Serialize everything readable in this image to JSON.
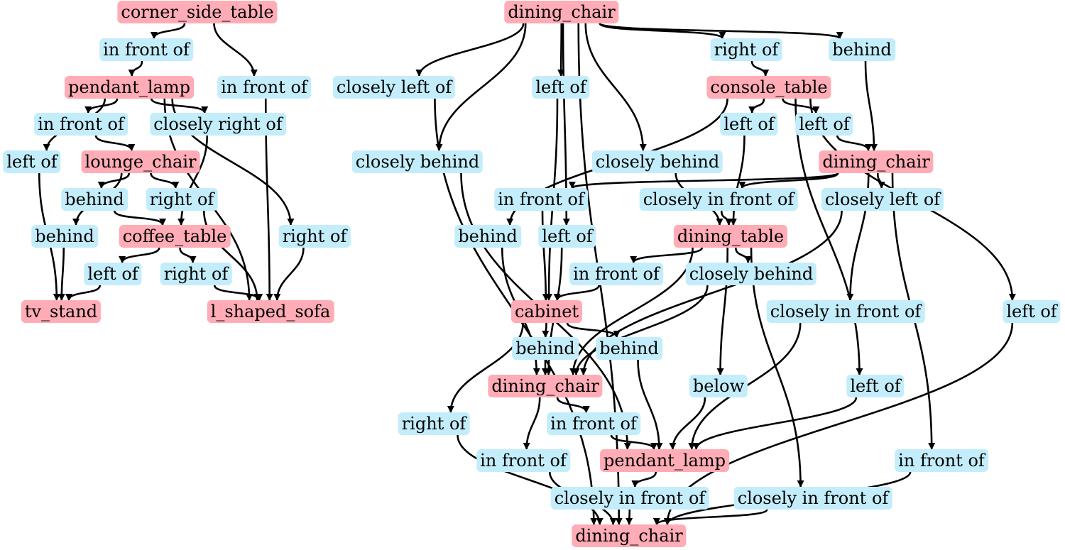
{
  "colors": {
    "object": "#ffacb6",
    "relation": "#c3edfb",
    "edge": "#000000"
  },
  "nodes": [
    {
      "id": "n1",
      "label": "corner_side_table",
      "kind": "object"
    },
    {
      "id": "n2",
      "label": "in front of",
      "kind": "relation"
    },
    {
      "id": "n3",
      "label": "pendant_lamp",
      "kind": "object"
    },
    {
      "id": "n4",
      "label": "in front of",
      "kind": "relation"
    },
    {
      "id": "n5",
      "label": "in front of",
      "kind": "relation"
    },
    {
      "id": "n6",
      "label": "closely right of",
      "kind": "relation"
    },
    {
      "id": "n7",
      "label": "left of",
      "kind": "relation"
    },
    {
      "id": "n8",
      "label": "lounge_chair",
      "kind": "object"
    },
    {
      "id": "n9",
      "label": "behind",
      "kind": "relation"
    },
    {
      "id": "n10",
      "label": "right of",
      "kind": "relation"
    },
    {
      "id": "n11",
      "label": "behind",
      "kind": "relation"
    },
    {
      "id": "n12",
      "label": "coffee_table",
      "kind": "object"
    },
    {
      "id": "n13",
      "label": "right of",
      "kind": "relation"
    },
    {
      "id": "n14",
      "label": "left of",
      "kind": "relation"
    },
    {
      "id": "n15",
      "label": "right of",
      "kind": "relation"
    },
    {
      "id": "n16",
      "label": "tv_stand",
      "kind": "object"
    },
    {
      "id": "n17",
      "label": "l_shaped_sofa",
      "kind": "object"
    },
    {
      "id": "n18",
      "label": "dining_chair",
      "kind": "object"
    },
    {
      "id": "n19",
      "label": "right of",
      "kind": "relation"
    },
    {
      "id": "n20",
      "label": "behind",
      "kind": "relation"
    },
    {
      "id": "n21",
      "label": "closely left of",
      "kind": "relation"
    },
    {
      "id": "n22",
      "label": "left of",
      "kind": "relation"
    },
    {
      "id": "n23",
      "label": "console_table",
      "kind": "object"
    },
    {
      "id": "n24",
      "label": "left of",
      "kind": "relation"
    },
    {
      "id": "n25",
      "label": "left of",
      "kind": "relation"
    },
    {
      "id": "n26",
      "label": "closely behind",
      "kind": "relation"
    },
    {
      "id": "n27",
      "label": "closely behind",
      "kind": "relation"
    },
    {
      "id": "n28",
      "label": "dining_chair",
      "kind": "object"
    },
    {
      "id": "n29",
      "label": "in front of",
      "kind": "relation"
    },
    {
      "id": "n30",
      "label": "closely in front of",
      "kind": "relation"
    },
    {
      "id": "n31",
      "label": "closely left of",
      "kind": "relation"
    },
    {
      "id": "n32",
      "label": "behind",
      "kind": "relation"
    },
    {
      "id": "n33",
      "label": "left of",
      "kind": "relation"
    },
    {
      "id": "n34",
      "label": "dining_table",
      "kind": "object"
    },
    {
      "id": "n35",
      "label": "in front of",
      "kind": "relation"
    },
    {
      "id": "n36",
      "label": "closely behind",
      "kind": "relation"
    },
    {
      "id": "n37",
      "label": "cabinet",
      "kind": "object"
    },
    {
      "id": "n38",
      "label": "closely in front of",
      "kind": "relation"
    },
    {
      "id": "n39",
      "label": "left of",
      "kind": "relation"
    },
    {
      "id": "n40",
      "label": "behind",
      "kind": "relation"
    },
    {
      "id": "n41",
      "label": "behind",
      "kind": "relation"
    },
    {
      "id": "n42",
      "label": "dining_chair",
      "kind": "object"
    },
    {
      "id": "n43",
      "label": "below",
      "kind": "relation"
    },
    {
      "id": "n44",
      "label": "left of",
      "kind": "relation"
    },
    {
      "id": "n45",
      "label": "right of",
      "kind": "relation"
    },
    {
      "id": "n46",
      "label": "in front of",
      "kind": "relation"
    },
    {
      "id": "n47",
      "label": "in front of",
      "kind": "relation"
    },
    {
      "id": "n48",
      "label": "pendant_lamp",
      "kind": "object"
    },
    {
      "id": "n49",
      "label": "in front of",
      "kind": "relation"
    },
    {
      "id": "n50",
      "label": "closely in front of",
      "kind": "relation"
    },
    {
      "id": "n51",
      "label": "closely in front of",
      "kind": "relation"
    },
    {
      "id": "n52",
      "label": "dining_chair",
      "kind": "object"
    }
  ],
  "edges": [
    [
      "n1",
      "n2"
    ],
    [
      "n1",
      "n4"
    ],
    [
      "n2",
      "n3"
    ],
    [
      "n3",
      "n5"
    ],
    [
      "n3",
      "n6"
    ],
    [
      "n3",
      "n7"
    ],
    [
      "n3",
      "n13"
    ],
    [
      "n3",
      "n17"
    ],
    [
      "n5",
      "n8"
    ],
    [
      "n6",
      "n12"
    ],
    [
      "n7",
      "n16"
    ],
    [
      "n4",
      "n17"
    ],
    [
      "n8",
      "n9"
    ],
    [
      "n8",
      "n10"
    ],
    [
      "n8",
      "n11"
    ],
    [
      "n9",
      "n12"
    ],
    [
      "n10",
      "n17"
    ],
    [
      "n11",
      "n16"
    ],
    [
      "n12",
      "n14"
    ],
    [
      "n12",
      "n15"
    ],
    [
      "n14",
      "n16"
    ],
    [
      "n15",
      "n17"
    ],
    [
      "n13",
      "n17"
    ],
    [
      "n18",
      "n19"
    ],
    [
      "n18",
      "n20"
    ],
    [
      "n18",
      "n21"
    ],
    [
      "n18",
      "n22"
    ],
    [
      "n18",
      "n26"
    ],
    [
      "n18",
      "n27"
    ],
    [
      "n18",
      "n33"
    ],
    [
      "n18",
      "n52"
    ],
    [
      "n19",
      "n23"
    ],
    [
      "n20",
      "n28"
    ],
    [
      "n21",
      "n52"
    ],
    [
      "n22",
      "n37"
    ],
    [
      "n23",
      "n24"
    ],
    [
      "n23",
      "n25"
    ],
    [
      "n23",
      "n32"
    ],
    [
      "n23",
      "n44"
    ],
    [
      "n23",
      "n39"
    ],
    [
      "n24",
      "n34"
    ],
    [
      "n25",
      "n28"
    ],
    [
      "n26",
      "n48"
    ],
    [
      "n27",
      "n34"
    ],
    [
      "n28",
      "n29"
    ],
    [
      "n28",
      "n30"
    ],
    [
      "n28",
      "n31"
    ],
    [
      "n28",
      "n38"
    ],
    [
      "n28",
      "n47"
    ],
    [
      "n29",
      "n37"
    ],
    [
      "n30",
      "n34"
    ],
    [
      "n31",
      "n42"
    ],
    [
      "n32",
      "n42"
    ],
    [
      "n33",
      "n42"
    ],
    [
      "n34",
      "n35"
    ],
    [
      "n34",
      "n36"
    ],
    [
      "n34",
      "n43"
    ],
    [
      "n34",
      "n42"
    ],
    [
      "n34",
      "n51"
    ],
    [
      "n35",
      "n37"
    ],
    [
      "n36",
      "n42"
    ],
    [
      "n37",
      "n40"
    ],
    [
      "n37",
      "n41"
    ],
    [
      "n37",
      "n45"
    ],
    [
      "n40",
      "n42"
    ],
    [
      "n41",
      "n48"
    ],
    [
      "n38",
      "n48"
    ],
    [
      "n43",
      "n48"
    ],
    [
      "n44",
      "n48"
    ],
    [
      "n42",
      "n46"
    ],
    [
      "n42",
      "n49"
    ],
    [
      "n46",
      "n48"
    ],
    [
      "n45",
      "n52"
    ],
    [
      "n49",
      "n52"
    ],
    [
      "n48",
      "n50"
    ],
    [
      "n50",
      "n52"
    ],
    [
      "n51",
      "n52"
    ],
    [
      "n47",
      "n52"
    ],
    [
      "n39",
      "n52"
    ]
  ]
}
